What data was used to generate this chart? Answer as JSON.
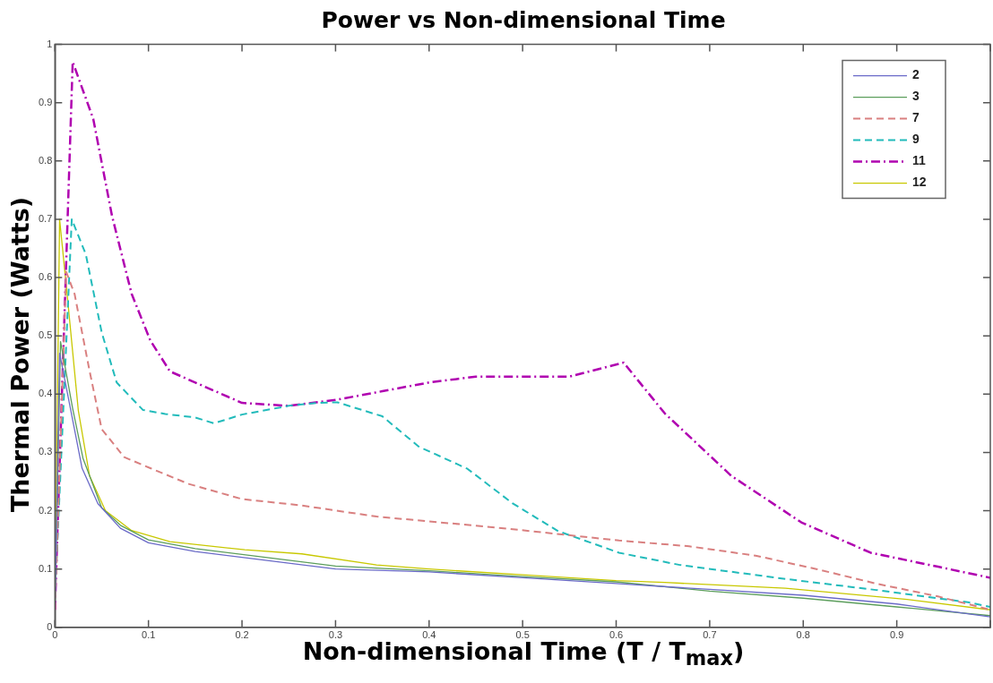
{
  "chart_data": {
    "type": "line",
    "title": "Power vs Non-dimensional Time",
    "xlabel": "Non-dimensional Time (T / T$_{max}$)",
    "ylabel": "Thermal Power (Watts)",
    "xlim": [
      0,
      1
    ],
    "ylim": [
      0,
      1
    ],
    "xticks": [
      0,
      0.1,
      0.2,
      0.3,
      0.4,
      0.5,
      0.6,
      0.7,
      0.8,
      0.9,
      {
        "value": 1,
        "label": null
      }
    ],
    "yticks": [
      0,
      0.1,
      0.2,
      0.3,
      0.4,
      0.5,
      0.6,
      0.7,
      0.8,
      0.9,
      1
    ],
    "grid": false,
    "legend": "top right",
    "marker": "none",
    "series": [
      {
        "name": "2",
        "color": "#6a6ac8",
        "line_style": "solid",
        "x": [
          0,
          0.005,
          0.017,
          0.029,
          0.046,
          0.07,
          0.1,
          0.15,
          0.2,
          0.3,
          0.4,
          0.5,
          0.6,
          0.7,
          0.8,
          0.9,
          1
        ],
        "values": [
          0.03,
          0.47,
          0.372,
          0.273,
          0.212,
          0.17,
          0.145,
          0.13,
          0.12,
          0.1,
          0.095,
          0.085,
          0.075,
          0.065,
          0.055,
          0.04,
          0.018
        ]
      },
      {
        "name": "3",
        "color": "#5c9e5c",
        "line_style": "solid",
        "x": [
          0,
          0.006,
          0.019,
          0.03,
          0.05,
          0.07,
          0.1,
          0.15,
          0.2,
          0.3,
          0.4,
          0.5,
          0.6,
          0.7,
          0.8,
          0.9,
          1
        ],
        "values": [
          0.03,
          0.49,
          0.375,
          0.29,
          0.205,
          0.175,
          0.15,
          0.135,
          0.125,
          0.105,
          0.097,
          0.087,
          0.078,
          0.062,
          0.05,
          0.035,
          0.02
        ]
      },
      {
        "name": "7",
        "color": "#d98080",
        "line_style": "dashed",
        "x": [
          0,
          0.012,
          0.021,
          0.037,
          0.05,
          0.074,
          0.102,
          0.143,
          0.2,
          0.264,
          0.344,
          0.473,
          0.603,
          0.678,
          0.749,
          0.814,
          0.878,
          0.944,
          1
        ],
        "values": [
          0.03,
          0.61,
          0.572,
          0.44,
          0.34,
          0.292,
          0.273,
          0.246,
          0.22,
          0.209,
          0.19,
          0.171,
          0.149,
          0.139,
          0.123,
          0.1,
          0.075,
          0.053,
          0.03
        ]
      },
      {
        "name": "9",
        "color": "#22bbbb",
        "line_style": "dashed",
        "x": [
          0,
          0.018,
          0.033,
          0.05,
          0.066,
          0.094,
          0.118,
          0.15,
          0.17,
          0.2,
          0.25,
          0.28,
          0.302,
          0.35,
          0.389,
          0.441,
          0.489,
          0.538,
          0.603,
          0.668,
          0.781,
          0.878,
          0.976,
          1
        ],
        "values": [
          0.05,
          0.7,
          0.64,
          0.506,
          0.42,
          0.373,
          0.366,
          0.36,
          0.35,
          0.365,
          0.38,
          0.385,
          0.386,
          0.362,
          0.31,
          0.272,
          0.213,
          0.165,
          0.128,
          0.107,
          0.083,
          0.064,
          0.043,
          0.035
        ]
      },
      {
        "name": "11",
        "color": "#b000b0",
        "line_style": "dashdot",
        "x": [
          0,
          0.019,
          0.041,
          0.061,
          0.082,
          0.102,
          0.123,
          0.15,
          0.2,
          0.25,
          0.3,
          0.35,
          0.4,
          0.45,
          0.5,
          0.55,
          0.608,
          0.652,
          0.723,
          0.798,
          0.872,
          0.944,
          1
        ],
        "values": [
          0.03,
          0.97,
          0.872,
          0.706,
          0.572,
          0.492,
          0.439,
          0.42,
          0.385,
          0.38,
          0.39,
          0.405,
          0.42,
          0.43,
          0.43,
          0.43,
          0.454,
          0.367,
          0.26,
          0.18,
          0.128,
          0.104,
          0.085
        ]
      },
      {
        "name": "12",
        "color": "#c8c800",
        "line_style": "solid",
        "x": [
          0,
          0.005,
          0.013,
          0.025,
          0.037,
          0.054,
          0.082,
          0.123,
          0.203,
          0.264,
          0.344,
          0.4,
          0.5,
          0.6,
          0.652,
          0.781,
          0.911,
          1
        ],
        "values": [
          0.03,
          0.7,
          0.572,
          0.372,
          0.26,
          0.2,
          0.166,
          0.147,
          0.133,
          0.126,
          0.107,
          0.1,
          0.09,
          0.08,
          0.077,
          0.067,
          0.048,
          0.03
        ]
      }
    ]
  }
}
